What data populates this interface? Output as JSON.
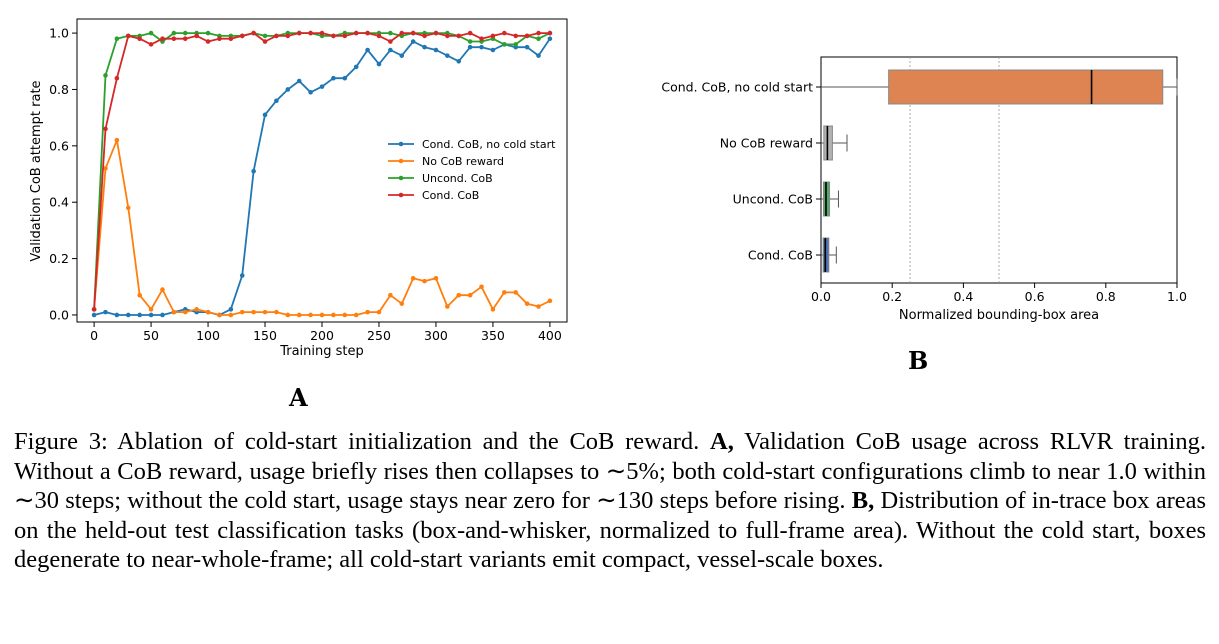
{
  "chart_data": [
    {
      "type": "line",
      "panel": "A",
      "xlabel": "Training step",
      "ylabel": "Validation CoB attempt rate",
      "xlim": [
        -15,
        415
      ],
      "ylim": [
        -0.025,
        1.05
      ],
      "xticks": [
        0,
        50,
        100,
        150,
        200,
        250,
        300,
        350,
        400
      ],
      "yticks": [
        0.0,
        0.2,
        0.4,
        0.6,
        0.8,
        1.0
      ],
      "xtick_labels": [
        "0",
        "50",
        "100",
        "150",
        "200",
        "250",
        "300",
        "350",
        "400"
      ],
      "ytick_labels": [
        "0.0",
        "0.2",
        "0.4",
        "0.6",
        "0.8",
        "1.0"
      ],
      "grid": false,
      "legend_position": "center-right",
      "series": [
        {
          "name": "Cond. CoB, no cold start",
          "color": "#1f77b4",
          "x": [
            0,
            10,
            20,
            30,
            40,
            50,
            60,
            70,
            80,
            90,
            100,
            110,
            120,
            130,
            140,
            150,
            160,
            170,
            180,
            190,
            200,
            210,
            220,
            230,
            240,
            250,
            260,
            270,
            280,
            290,
            300,
            310,
            320,
            330,
            340,
            350,
            360,
            370,
            380,
            390,
            400
          ],
          "y": [
            0.0,
            0.01,
            0.0,
            0.0,
            0.0,
            0.0,
            0.0,
            0.01,
            0.02,
            0.01,
            0.01,
            0.0,
            0.02,
            0.14,
            0.51,
            0.71,
            0.76,
            0.8,
            0.83,
            0.79,
            0.81,
            0.84,
            0.84,
            0.88,
            0.94,
            0.89,
            0.94,
            0.92,
            0.97,
            0.95,
            0.94,
            0.92,
            0.9,
            0.95,
            0.95,
            0.94,
            0.96,
            0.95,
            0.95,
            0.92,
            0.98
          ]
        },
        {
          "name": "No CoB reward",
          "color": "#ff7f0e",
          "x": [
            0,
            10,
            20,
            30,
            40,
            50,
            60,
            70,
            80,
            90,
            100,
            110,
            120,
            130,
            140,
            150,
            160,
            170,
            180,
            190,
            200,
            210,
            220,
            230,
            240,
            250,
            260,
            270,
            280,
            290,
            300,
            310,
            320,
            330,
            340,
            350,
            360,
            370,
            380,
            390,
            400
          ],
          "y": [
            0.02,
            0.52,
            0.62,
            0.38,
            0.07,
            0.02,
            0.09,
            0.01,
            0.01,
            0.02,
            0.01,
            0.0,
            0.0,
            0.01,
            0.01,
            0.01,
            0.01,
            0.0,
            0.0,
            0.0,
            0.0,
            0.0,
            0.0,
            0.0,
            0.01,
            0.01,
            0.07,
            0.04,
            0.13,
            0.12,
            0.13,
            0.03,
            0.07,
            0.07,
            0.1,
            0.02,
            0.08,
            0.08,
            0.04,
            0.03,
            0.05
          ]
        },
        {
          "name": "Uncond. CoB",
          "color": "#2ca02c",
          "x": [
            0,
            10,
            20,
            30,
            40,
            50,
            60,
            70,
            80,
            90,
            100,
            110,
            120,
            130,
            140,
            150,
            160,
            170,
            180,
            190,
            200,
            210,
            220,
            230,
            240,
            250,
            260,
            270,
            280,
            290,
            300,
            310,
            320,
            330,
            340,
            350,
            360,
            370,
            380,
            390,
            400
          ],
          "y": [
            0.02,
            0.85,
            0.98,
            0.99,
            0.99,
            1.0,
            0.97,
            1.0,
            1.0,
            1.0,
            1.0,
            0.99,
            0.99,
            0.99,
            1.0,
            0.99,
            0.99,
            1.0,
            1.0,
            1.0,
            0.99,
            0.99,
            1.0,
            1.0,
            1.0,
            1.0,
            1.0,
            0.99,
            1.0,
            1.0,
            1.0,
            1.0,
            0.99,
            0.97,
            0.97,
            0.98,
            0.96,
            0.96,
            0.99,
            0.98,
            1.0
          ]
        },
        {
          "name": "Cond. CoB",
          "color": "#d62728",
          "x": [
            0,
            10,
            20,
            30,
            40,
            50,
            60,
            70,
            80,
            90,
            100,
            110,
            120,
            130,
            140,
            150,
            160,
            170,
            180,
            190,
            200,
            210,
            220,
            230,
            240,
            250,
            260,
            270,
            280,
            290,
            300,
            310,
            320,
            330,
            340,
            350,
            360,
            370,
            380,
            390,
            400
          ],
          "y": [
            0.02,
            0.66,
            0.84,
            0.99,
            0.98,
            0.96,
            0.98,
            0.98,
            0.98,
            0.99,
            0.97,
            0.98,
            0.98,
            0.99,
            1.0,
            0.97,
            0.99,
            0.99,
            1.0,
            1.0,
            1.0,
            0.99,
            0.99,
            1.0,
            1.0,
            0.99,
            0.97,
            1.0,
            1.0,
            0.99,
            1.0,
            0.99,
            0.99,
            1.0,
            0.98,
            0.99,
            1.0,
            0.99,
            0.99,
            1.0,
            1.0
          ]
        }
      ]
    },
    {
      "type": "box",
      "panel": "B",
      "xlabel": "Normalized bounding-box area",
      "xlim": [
        0.0,
        1.0
      ],
      "xticks": [
        0.0,
        0.2,
        0.4,
        0.6,
        0.8,
        1.0
      ],
      "xtick_labels": [
        "0.0",
        "0.2",
        "0.4",
        "0.6",
        "0.8",
        "1.0"
      ],
      "reference_lines": [
        0.25,
        0.5
      ],
      "boxes": [
        {
          "label": "Cond. CoB, no cold start",
          "color": "#dd8452",
          "whisker_low": 0.0,
          "q1": 0.19,
          "median": 0.76,
          "q3": 0.96,
          "whisker_high": 1.0
        },
        {
          "label": "No CoB reward",
          "color": "#b3b3b3",
          "whisker_low": 0.0,
          "q1": 0.008,
          "median": 0.018,
          "q3": 0.032,
          "whisker_high": 0.073
        },
        {
          "label": "Uncond. CoB",
          "color": "#55a868",
          "whisker_low": 0.0,
          "q1": 0.007,
          "median": 0.014,
          "q3": 0.024,
          "whisker_high": 0.049
        },
        {
          "label": "Cond. CoB",
          "color": "#4c72b0",
          "whisker_low": 0.0,
          "q1": 0.006,
          "median": 0.012,
          "q3": 0.022,
          "whisker_high": 0.043
        }
      ]
    }
  ],
  "panel_labels": {
    "a": "A",
    "b": "B"
  },
  "caption": {
    "prefix": "Figure 3: Ablation of cold-start initialization and the CoB reward.",
    "a_label": "A,",
    "a_text": "Validation CoB usage across RLVR training. Without a CoB reward, usage briefly rises then collapses to ∼5%; both cold-start configurations climb to near 1.0 within ∼30 steps; without the cold start, usage stays near zero for ∼130 steps before rising.",
    "b_label": "B,",
    "b_text": "Distribution of in-trace box areas on the held-out test classification tasks (box-and-whisker, normalized to full-frame area). Without the cold start, boxes degenerate to near-whole-frame; all cold-start variants emit compact, vessel-scale boxes."
  }
}
